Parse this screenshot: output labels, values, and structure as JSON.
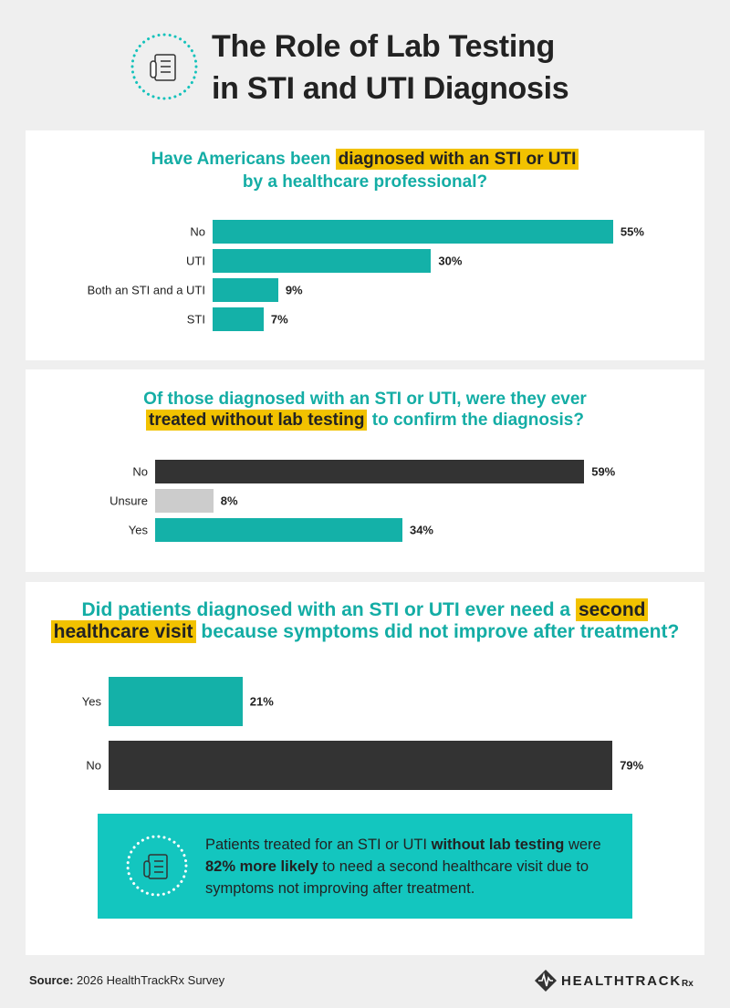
{
  "title": [
    "The Role of Lab Testing",
    "in STI and UTI Diagnosis"
  ],
  "chart_data": [
    {
      "type": "bar",
      "orientation": "horizontal",
      "title": [
        [
          {
            "text": "Have Americans been ",
            "highlight": false
          },
          {
            "text": "diagnosed with an STI or UTI",
            "highlight": true
          }
        ],
        [
          {
            "text": "by a healthcare professional?",
            "highlight": false
          }
        ]
      ],
      "categories": [
        "No",
        "UTI",
        "Both an STI and a UTI",
        "STI"
      ],
      "values": [
        55,
        30,
        9,
        7
      ],
      "value_labels": [
        "55%",
        "30%",
        "9%",
        "7%"
      ],
      "colors": [
        "#14b1a8",
        "#14b1a8",
        "#14b1a8",
        "#14b1a8"
      ]
    },
    {
      "type": "bar",
      "orientation": "horizontal",
      "title": [
        [
          {
            "text": "Of those diagnosed with an STI or UTI, were they ever",
            "highlight": false
          }
        ],
        [
          {
            "text": "treated without lab testing",
            "highlight": true
          },
          {
            "text": " to confirm the diagnosis?",
            "highlight": false
          }
        ]
      ],
      "categories": [
        "No",
        "Unsure",
        "Yes"
      ],
      "values": [
        59,
        8,
        34
      ],
      "value_labels": [
        "59%",
        "8%",
        "34%"
      ],
      "colors": [
        "#333333",
        "#cccccc",
        "#14b1a8"
      ]
    },
    {
      "type": "bar",
      "orientation": "horizontal",
      "title": [
        [
          {
            "text": "Did patients diagnosed with an STI or UTI ever need a ",
            "highlight": false
          },
          {
            "text": "second",
            "highlight": true
          }
        ],
        [
          {
            "text": "healthcare visit",
            "highlight": true
          },
          {
            "text": " because symptoms did not improve after treatment?",
            "highlight": false
          }
        ]
      ],
      "categories": [
        "Yes",
        "No"
      ],
      "values": [
        21,
        79
      ],
      "value_labels": [
        "21%",
        "79%"
      ],
      "colors": [
        "#14b1a8",
        "#333333"
      ]
    }
  ],
  "callout": [
    {
      "text": "Patients treated for an STI or UTI ",
      "bold": false
    },
    {
      "text": "without lab testing",
      "bold": true
    },
    {
      "text": " were ",
      "bold": false
    },
    {
      "text": "82% more likely",
      "bold": true
    },
    {
      "text": " to need a second healthcare visit due to symptoms not improving after treatment.",
      "bold": false
    }
  ],
  "source": {
    "label": "Source:",
    "text": "2026 HealthTrackRx Survey"
  },
  "logo": [
    "HEALTHTRACK",
    "Rx"
  ]
}
